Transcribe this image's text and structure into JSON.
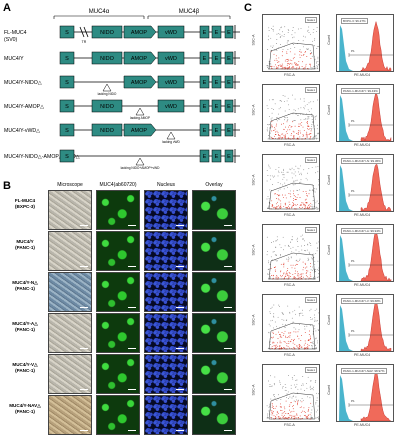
{
  "panel_letters": {
    "a": "A",
    "b": "B",
    "c": "C"
  },
  "panelA": {
    "header_alpha": "MUC4α",
    "header_beta": "MUC4β",
    "constructs": [
      {
        "label": "FL-MUC4",
        "sub": "(SV0)"
      },
      {
        "label": "MUC4/Y"
      },
      {
        "label": "MUC4/Y-NIDO△",
        "note": "lacking NIDO"
      },
      {
        "label": "MUC4/Y-AMOP△",
        "note": "lacking AMOP"
      },
      {
        "label": "MUC4/Y-vWD△",
        "note": "lacking vWD"
      },
      {
        "label": "MUC4/Y-NIDO△-AMOP△-vWD△",
        "note": "lacking NIDO+AMOP+vWD"
      }
    ],
    "domains": {
      "s": "S",
      "tr": "TR",
      "nido": "NIDO",
      "amop": "AMOP",
      "vwd": "vWD",
      "e": "E"
    }
  },
  "panelB": {
    "headers": [
      "Microscope",
      "MUC4(ab60720)",
      "Nucleus",
      "Overlay"
    ],
    "rows": [
      {
        "label1": "FL-MUC4",
        "label2": "(BXPC-3)"
      },
      {
        "label1": "MUC4/Y",
        "label2": "(PANC-1)"
      },
      {
        "label1": "MUC4/Y-N△",
        "label2": "(PANC-1)"
      },
      {
        "label1": "MUC4/Y-A△",
        "label2": "(PANC-1)"
      },
      {
        "label1": "MUC4/Y-V△",
        "label2": "(PANC-1)"
      },
      {
        "label1": "MUC4/Y-NAV△",
        "label2": "(PANC-1)"
      }
    ]
  },
  "panelC": {
    "gate_label": "Gate1",
    "scatter_xlabel": "FSC-A",
    "scatter_ylabel": "SSC-A",
    "hist_xlabel": "PE-MUC4",
    "hist_ylabel": "Count",
    "marker_label": "P1",
    "rows": [
      {
        "stat": "BXPC-3: 96.27%"
      },
      {
        "stat": "PANC-1-MUC4/Y: 99.43%"
      },
      {
        "stat": "PANC-1-MUC4/Y-N: 99.36%"
      },
      {
        "stat": "PANC-1-MUC4/Y-A: 99.94%"
      },
      {
        "stat": "PANC-1-MUC4/Y-V: 99.68%"
      },
      {
        "stat": "PANC-1-MUC4/Y-NAV: 98.97%"
      }
    ]
  }
}
